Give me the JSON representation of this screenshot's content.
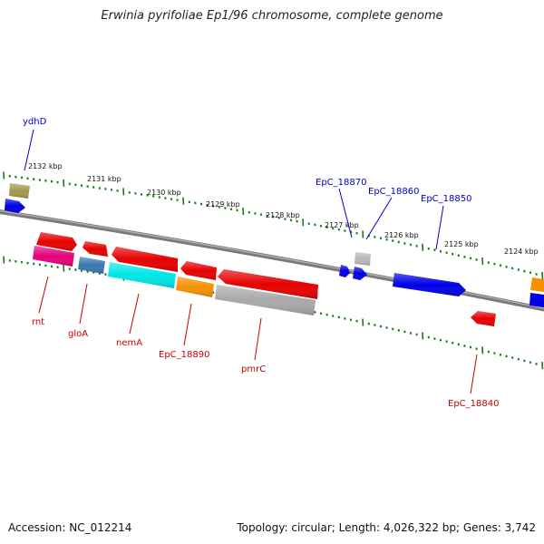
{
  "title": "Erwinia pyrifoliae Ep1/96 chromosome, complete genome",
  "footer": {
    "accession": "Accession: NC_012214",
    "topology": "Topology: circular; Length: 4,026,322 bp; Genes: 3,742"
  },
  "ruler_labels": [
    "2132 kbp",
    "2131 kbp",
    "2130 kbp",
    "2129 kbp",
    "2128 kbp",
    "2127 kbp",
    "2126 kbp",
    "2125 kbp",
    "2124 kbp"
  ],
  "top_gene_labels": [
    "ydhD",
    "EpC_18870",
    "EpC_18860",
    "EpC_18850"
  ],
  "bottom_gene_labels": [
    "rnt",
    "gloA",
    "nemA",
    "EpC_18890",
    "pmrC",
    "EpC_18840"
  ],
  "colors": {
    "backbone": "#7a7a7a",
    "ticks": "#1a7a1a",
    "top_label": "#0000cc",
    "bottom_label": "#cc0000",
    "gene_red": "#e60000",
    "gene_blue": "#0000e6",
    "gene_magenta": "#e6007a",
    "gene_steelblue": "#3a78b0",
    "gene_cyan": "#00e6e6",
    "gene_orange": "#f59000",
    "gene_gray": "#a8a8a8",
    "gene_olive": "#a09a50",
    "gene_lightgray": "#b8b8b8"
  }
}
